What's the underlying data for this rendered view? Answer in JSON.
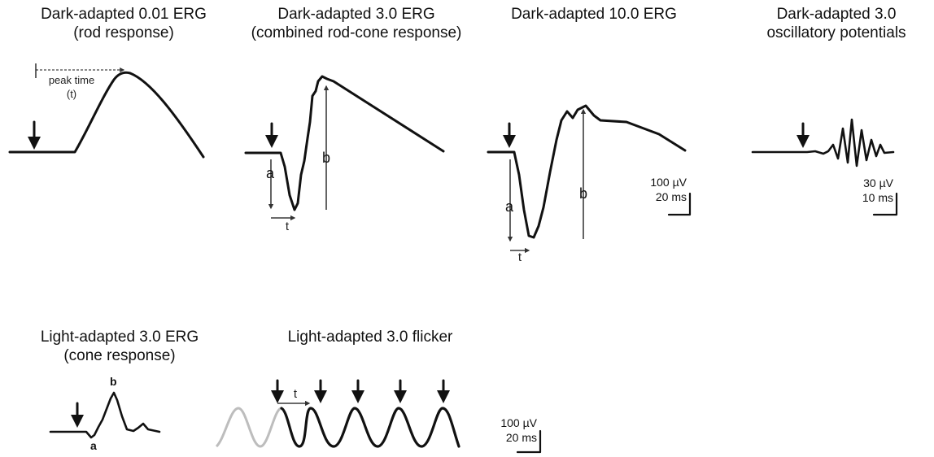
{
  "panels": {
    "rod": {
      "title_line1": "Dark-adapted 0.01 ERG",
      "title_line2": "(rod response)",
      "peak_label_line1": "peak time",
      "peak_label_line2": "(t)"
    },
    "combined": {
      "title_line1": "Dark-adapted 3.0 ERG",
      "title_line2": "(combined rod-cone response)",
      "label_a": "a",
      "label_b": "b",
      "label_t": "t"
    },
    "strong": {
      "title_line1": "Dark-adapted 10.0 ERG",
      "label_a": "a",
      "label_b": "b",
      "label_t": "t",
      "scale_amp": "100 µV",
      "scale_time": "20 ms"
    },
    "ops": {
      "title_line1": "Dark-adapted 3.0",
      "title_line2": "oscillatory potentials",
      "scale_amp": "30 µV",
      "scale_time": "10 ms"
    },
    "cone": {
      "title_line1": "Light-adapted 3.0 ERG",
      "title_line2": "(cone response)",
      "label_a": "a",
      "label_b": "b"
    },
    "flicker": {
      "title_line1": "Light-adapted 3.0 flicker",
      "label_t": "t",
      "scale_amp": "100 µV",
      "scale_time": "20 ms"
    }
  },
  "colors": {
    "trace": "#111111",
    "ghost_trace": "#bdbdbd"
  }
}
